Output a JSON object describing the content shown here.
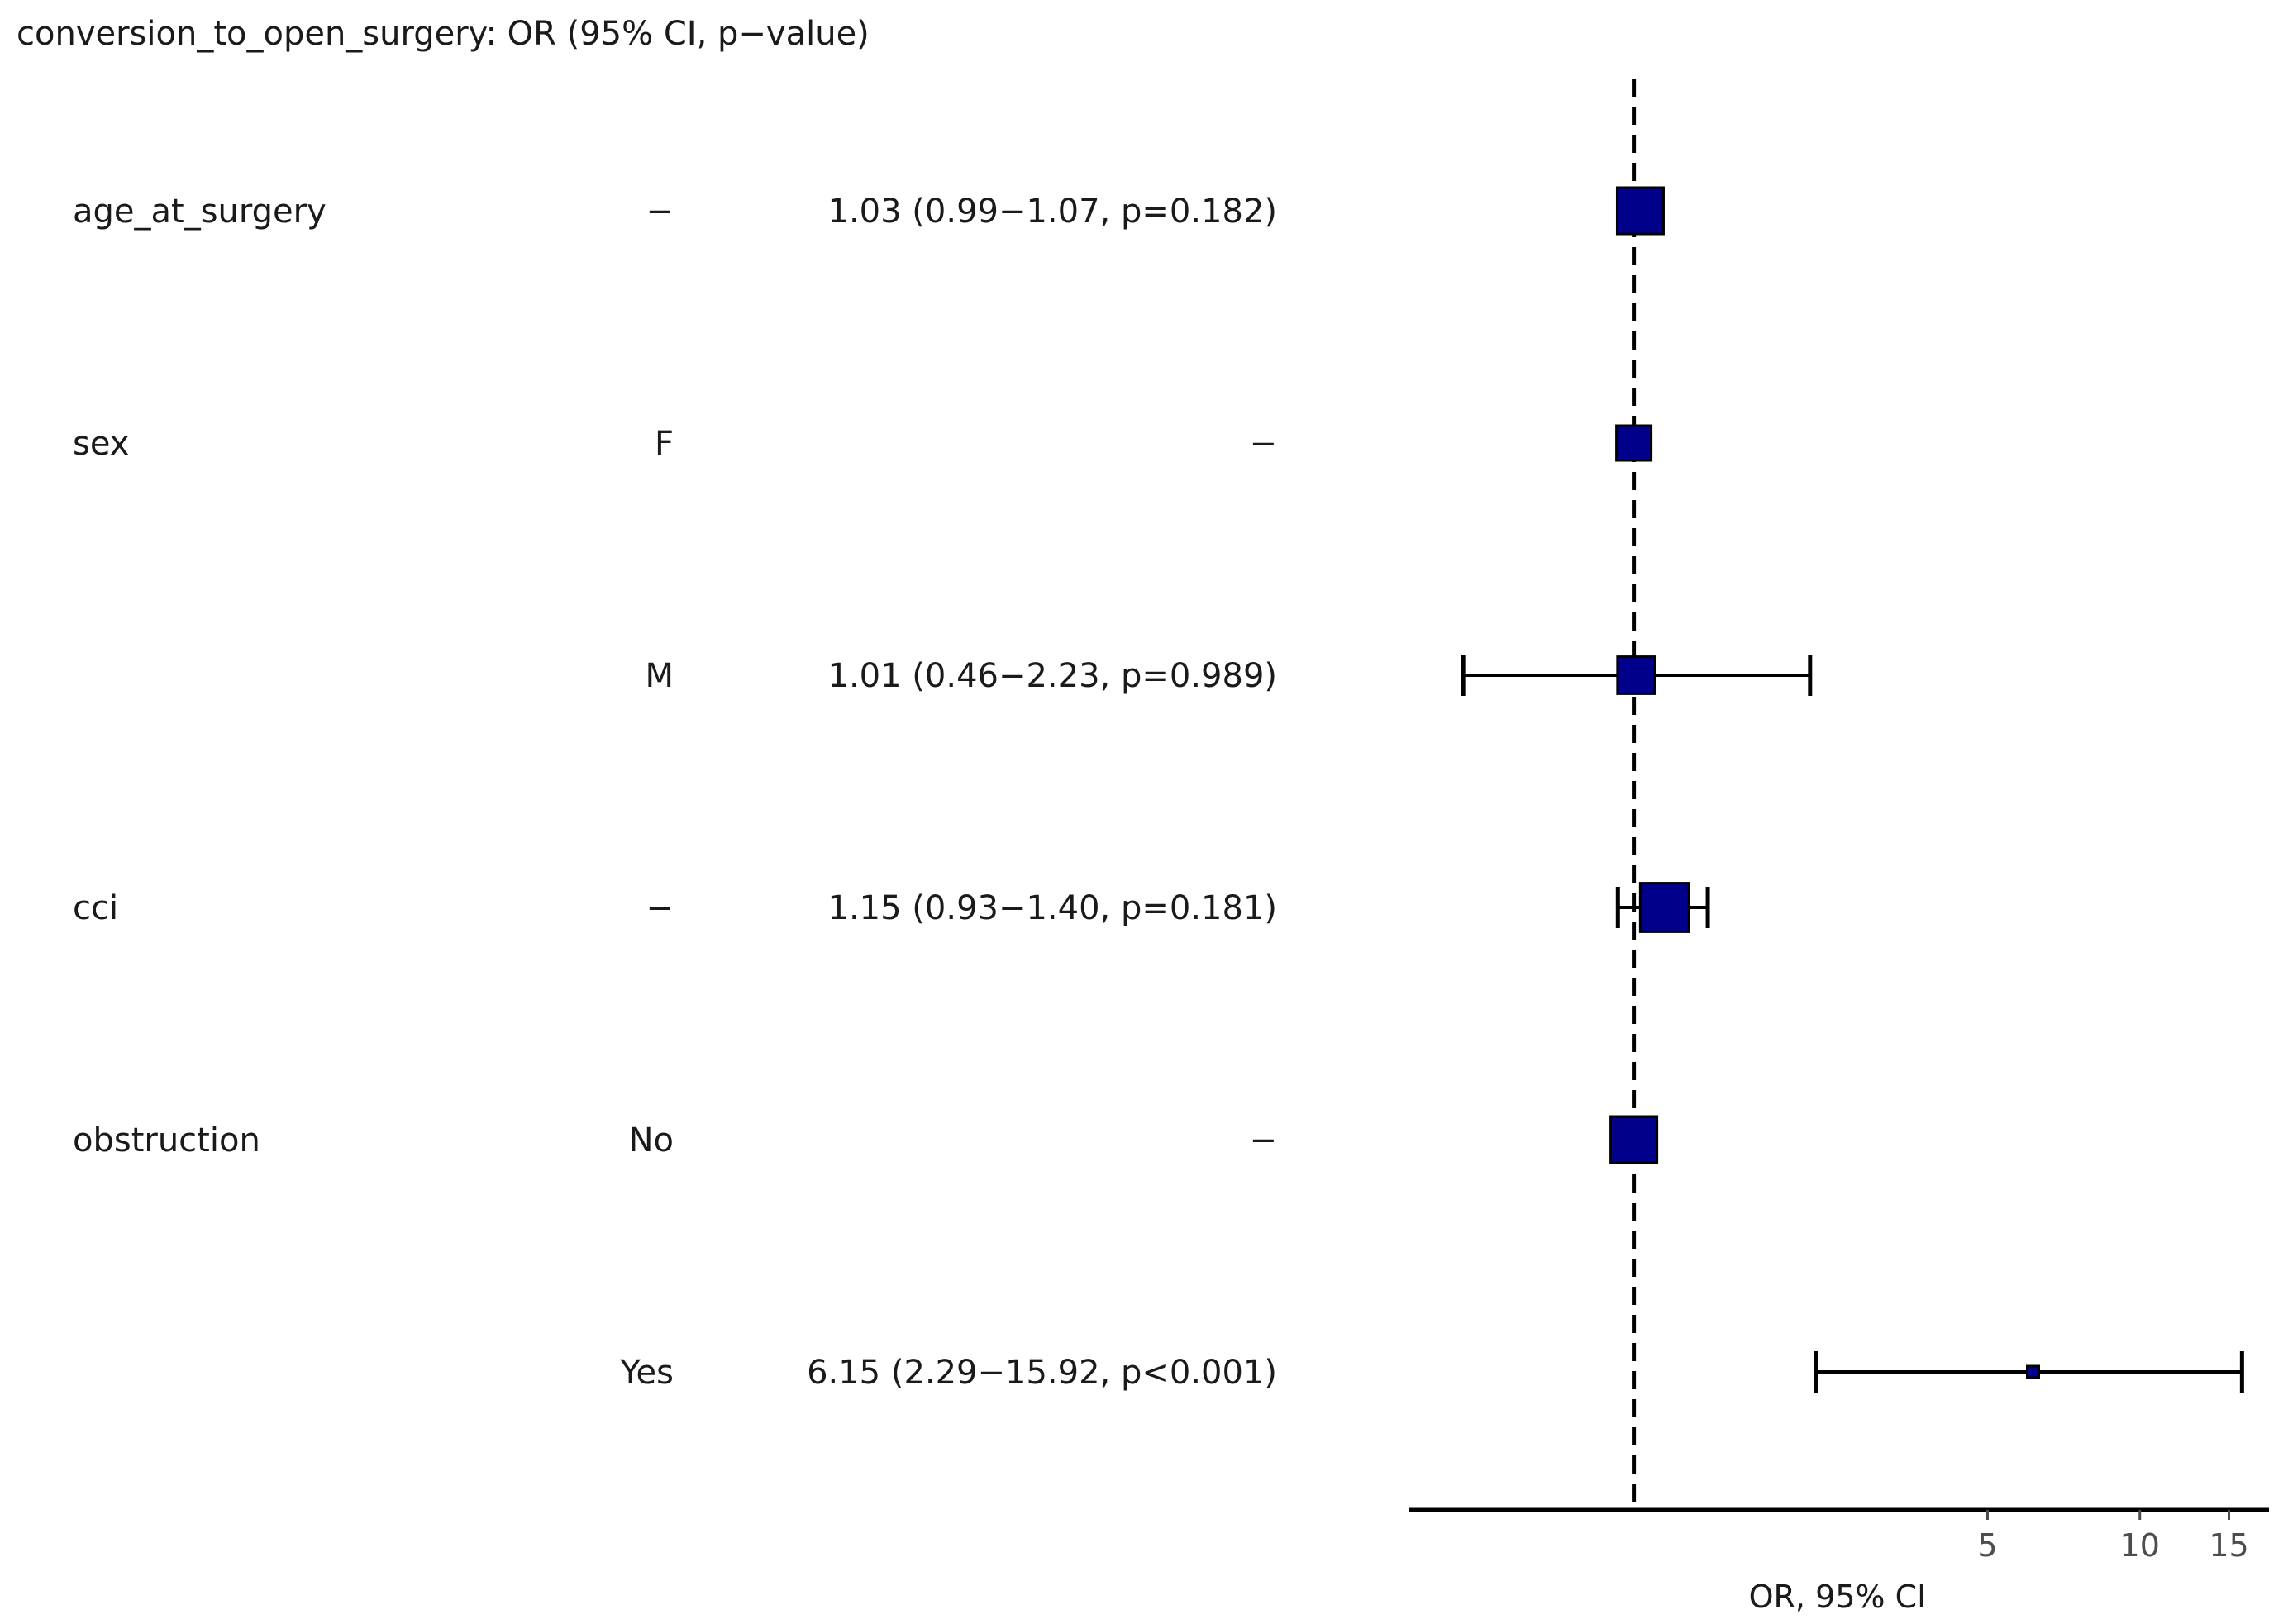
{
  "chart_data": {
    "type": "forest",
    "title": "conversion_to_open_surgery: OR (95% CI, p−value)",
    "xlabel": "OR, 95% CI",
    "scale": "log",
    "reference_line": 1,
    "xticks": [
      "5",
      "10",
      "15"
    ],
    "xtick_values": [
      5,
      10,
      15
    ],
    "xlim": [
      0.36,
      18
    ],
    "box_fill": "#00008B",
    "rows": [
      {
        "variable": "age_at_surgery",
        "level": "−",
        "label": "1.03 (0.99−1.07, p=0.182)",
        "or": 1.03,
        "lower": 0.99,
        "upper": 1.07,
        "size": 1.0
      },
      {
        "variable": "sex",
        "level": "F",
        "label": "−",
        "or": 1.0,
        "lower": null,
        "upper": null,
        "size": 0.75
      },
      {
        "variable": "",
        "level": "M",
        "label": "1.01 (0.46−2.23, p=0.989)",
        "or": 1.01,
        "lower": 0.46,
        "upper": 2.23,
        "size": 0.8
      },
      {
        "variable": "cci",
        "level": "−",
        "label": "1.15 (0.93−1.40, p=0.181)",
        "or": 1.15,
        "lower": 0.93,
        "upper": 1.4,
        "size": 1.05
      },
      {
        "variable": "obstruction",
        "level": "No",
        "label": "−",
        "or": 1.0,
        "lower": null,
        "upper": null,
        "size": 1.0
      },
      {
        "variable": "",
        "level": "Yes",
        "label": "6.15 (2.29−15.92, p<0.001)",
        "or": 6.15,
        "lower": 2.29,
        "upper": 15.92,
        "size": 0.2
      }
    ]
  }
}
